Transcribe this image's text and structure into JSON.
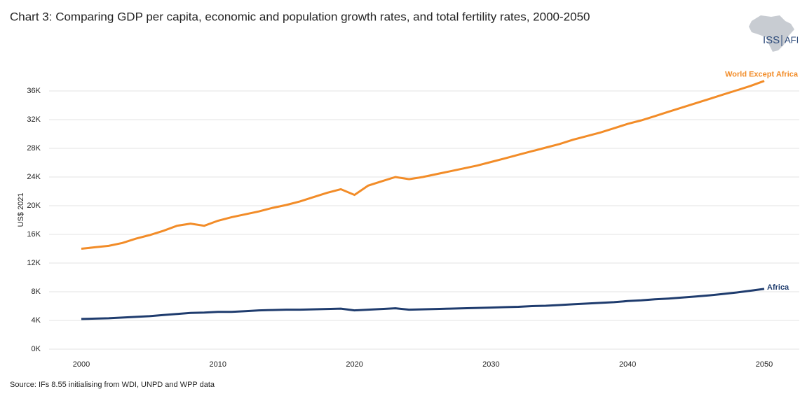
{
  "chart_data": {
    "type": "line",
    "title": "Chart 3: Comparing GDP per capita, economic and population growth rates, and total fertility rates, 2000-2050",
    "y_label": "US$ 2021",
    "source": "Source: IFs 8.55 initialising from WDI, UNPD and WPP data",
    "logo": {
      "left": "ISS",
      "right": "AFI"
    },
    "x": [
      2000,
      2001,
      2002,
      2003,
      2004,
      2005,
      2006,
      2007,
      2008,
      2009,
      2010,
      2011,
      2012,
      2013,
      2014,
      2015,
      2016,
      2017,
      2018,
      2019,
      2020,
      2021,
      2022,
      2023,
      2024,
      2025,
      2026,
      2027,
      2028,
      2029,
      2030,
      2031,
      2032,
      2033,
      2034,
      2035,
      2036,
      2037,
      2038,
      2039,
      2040,
      2041,
      2042,
      2043,
      2044,
      2045,
      2046,
      2047,
      2048,
      2049,
      2050
    ],
    "series": [
      {
        "name": "World Except Africa",
        "color": "#f28c28",
        "values": [
          14000,
          14200,
          14400,
          14800,
          15400,
          15900,
          16500,
          17200,
          17500,
          17200,
          17900,
          18400,
          18800,
          19200,
          19700,
          20100,
          20600,
          21200,
          21800,
          22300,
          21500,
          22800,
          23400,
          24000,
          23700,
          24000,
          24400,
          24800,
          25200,
          25600,
          26100,
          26600,
          27100,
          27600,
          28100,
          28600,
          29200,
          29700,
          30200,
          30800,
          31400,
          31900,
          32500,
          33100,
          33700,
          34300,
          34900,
          35500,
          36100,
          36700,
          37400
        ]
      },
      {
        "name": "Africa",
        "color": "#1f3c6e",
        "values": [
          4200,
          4250,
          4300,
          4400,
          4500,
          4600,
          4750,
          4900,
          5050,
          5100,
          5200,
          5200,
          5300,
          5400,
          5450,
          5500,
          5500,
          5550,
          5600,
          5650,
          5400,
          5500,
          5600,
          5700,
          5500,
          5550,
          5600,
          5650,
          5700,
          5750,
          5800,
          5850,
          5900,
          6000,
          6050,
          6150,
          6250,
          6350,
          6450,
          6550,
          6700,
          6800,
          6950,
          7050,
          7200,
          7350,
          7500,
          7700,
          7900,
          8150,
          8400
        ]
      }
    ],
    "xlim": [
      2000,
      2050
    ],
    "xticks": [
      2000,
      2010,
      2020,
      2030,
      2040,
      2050
    ],
    "ylim": [
      0,
      38000
    ],
    "yticks": [
      {
        "value": 0,
        "label": "0K"
      },
      {
        "value": 4000,
        "label": "4K"
      },
      {
        "value": 8000,
        "label": "8K"
      },
      {
        "value": 12000,
        "label": "12K"
      },
      {
        "value": 16000,
        "label": "16K"
      },
      {
        "value": 20000,
        "label": "20K"
      },
      {
        "value": 24000,
        "label": "24K"
      },
      {
        "value": 28000,
        "label": "28K"
      },
      {
        "value": 32000,
        "label": "32K"
      },
      {
        "value": 36000,
        "label": "36K"
      }
    ],
    "grid": true
  }
}
